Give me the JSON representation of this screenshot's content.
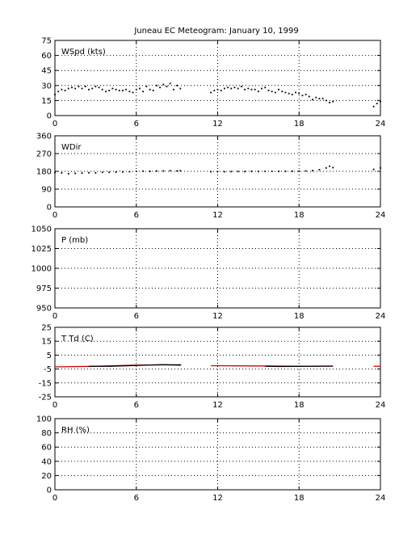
{
  "figure": {
    "title": "Juneau EC Meteogram:   January 10, 1999"
  },
  "chart_data": [
    {
      "type": "scatter",
      "title": "WSpd (kts)",
      "xlim": [
        0,
        24
      ],
      "ylim": [
        0,
        75
      ],
      "xticks": [
        0,
        6,
        12,
        18,
        24
      ],
      "yticks": [
        0,
        15,
        30,
        45,
        60,
        75
      ],
      "grid": true,
      "series": [
        {
          "color": "#000000",
          "points": [
            [
              0.0,
              21
            ],
            [
              0.25,
              24
            ],
            [
              0.5,
              26
            ],
            [
              0.75,
              25
            ],
            [
              1.0,
              27
            ],
            [
              1.25,
              28
            ],
            [
              1.5,
              27
            ],
            [
              1.75,
              29
            ],
            [
              2.0,
              27
            ],
            [
              2.25,
              29
            ],
            [
              2.5,
              26
            ],
            [
              2.75,
              27
            ],
            [
              3.0,
              29
            ],
            [
              3.25,
              28
            ],
            [
              3.5,
              26
            ],
            [
              3.75,
              24
            ],
            [
              4.0,
              25
            ],
            [
              4.25,
              27
            ],
            [
              4.5,
              26
            ],
            [
              4.75,
              25
            ],
            [
              5.0,
              25
            ],
            [
              5.25,
              26
            ],
            [
              5.5,
              24
            ],
            [
              5.75,
              23
            ],
            [
              6.0,
              26
            ],
            [
              6.25,
              27
            ],
            [
              6.5,
              24
            ],
            [
              6.75,
              29
            ],
            [
              7.0,
              26
            ],
            [
              7.25,
              25
            ],
            [
              7.5,
              30
            ],
            [
              7.75,
              28
            ],
            [
              8.0,
              31
            ],
            [
              8.25,
              29
            ],
            [
              8.5,
              32
            ],
            [
              8.75,
              26
            ],
            [
              9.0,
              30
            ],
            [
              9.25,
              27
            ],
            [
              11.5,
              23
            ],
            [
              11.75,
              25
            ],
            [
              12.0,
              26
            ],
            [
              12.25,
              25
            ],
            [
              12.5,
              27
            ],
            [
              12.75,
              28
            ],
            [
              13.0,
              27
            ],
            [
              13.25,
              28
            ],
            [
              13.5,
              27
            ],
            [
              13.75,
              29
            ],
            [
              14.0,
              26
            ],
            [
              14.25,
              27
            ],
            [
              14.5,
              26
            ],
            [
              14.75,
              26
            ],
            [
              15.0,
              24
            ],
            [
              15.25,
              27
            ],
            [
              15.5,
              28
            ],
            [
              15.75,
              25
            ],
            [
              16.0,
              24
            ],
            [
              16.25,
              23
            ],
            [
              16.5,
              26
            ],
            [
              16.75,
              24
            ],
            [
              17.0,
              23
            ],
            [
              17.25,
              22
            ],
            [
              17.5,
              21
            ],
            [
              17.75,
              23
            ],
            [
              18.0,
              22
            ],
            [
              18.25,
              20
            ],
            [
              18.5,
              21
            ],
            [
              18.75,
              19
            ],
            [
              19.0,
              16
            ],
            [
              19.25,
              18
            ],
            [
              19.5,
              17
            ],
            [
              19.75,
              17
            ],
            [
              20.0,
              15
            ],
            [
              20.25,
              13
            ],
            [
              20.5,
              14
            ],
            [
              23.5,
              9
            ],
            [
              23.75,
              12
            ],
            [
              24.0,
              14
            ]
          ]
        }
      ]
    },
    {
      "type": "scatter",
      "title": "WDir",
      "xlim": [
        0,
        24
      ],
      "ylim": [
        0,
        360
      ],
      "xticks": [
        0,
        6,
        12,
        18,
        24
      ],
      "yticks": [
        0,
        90,
        180,
        270,
        360
      ],
      "grid": true,
      "series": [
        {
          "color": "#000000",
          "points": [
            [
              0.0,
              174
            ],
            [
              0.5,
              172
            ],
            [
              1.0,
              168
            ],
            [
              1.5,
              170
            ],
            [
              2.0,
              171
            ],
            [
              2.5,
              173
            ],
            [
              3.0,
              172
            ],
            [
              3.5,
              175
            ],
            [
              4.0,
              175
            ],
            [
              4.5,
              176
            ],
            [
              5.0,
              177
            ],
            [
              5.5,
              178
            ],
            [
              6.0,
              180
            ],
            [
              6.5,
              181
            ],
            [
              7.0,
              180
            ],
            [
              7.5,
              182
            ],
            [
              8.0,
              182
            ],
            [
              8.5,
              183
            ],
            [
              9.0,
              182
            ],
            [
              9.25,
              183
            ],
            [
              11.5,
              178
            ],
            [
              12.0,
              178
            ],
            [
              12.5,
              178
            ],
            [
              13.0,
              179
            ],
            [
              13.5,
              179
            ],
            [
              14.0,
              179
            ],
            [
              14.5,
              180
            ],
            [
              15.0,
              179
            ],
            [
              15.5,
              180
            ],
            [
              16.0,
              180
            ],
            [
              16.5,
              180
            ],
            [
              17.0,
              180
            ],
            [
              17.5,
              181
            ],
            [
              18.0,
              181
            ],
            [
              18.5,
              182
            ],
            [
              19.0,
              184
            ],
            [
              19.5,
              188
            ],
            [
              20.0,
              197
            ],
            [
              20.25,
              206
            ],
            [
              20.5,
              199
            ],
            [
              23.5,
              190
            ],
            [
              24.0,
              197
            ]
          ]
        }
      ]
    },
    {
      "type": "line",
      "title": "P (mb)",
      "xlim": [
        0,
        24
      ],
      "ylim": [
        950,
        1050
      ],
      "xticks": [
        0,
        6,
        12,
        18,
        24
      ],
      "yticks": [
        950,
        975,
        1000,
        1025,
        1050
      ],
      "grid": true,
      "series": []
    },
    {
      "type": "line",
      "title": "T Td (C)",
      "xlim": [
        0,
        24
      ],
      "ylim": [
        -25,
        25
      ],
      "xticks": [
        0,
        6,
        12,
        18,
        24
      ],
      "yticks": [
        -25,
        -15,
        -5,
        5,
        15,
        25
      ],
      "grid": true,
      "series": [
        {
          "color": "#cc0000",
          "segments": [
            [
              [
                0,
                -3.5
              ],
              [
                3,
                -3.0
              ],
              [
                6,
                -2.2
              ],
              [
                8,
                -2.0
              ],
              [
                9.3,
                -2.3
              ]
            ],
            [
              [
                11.5,
                -2.6
              ],
              [
                15,
                -2.8
              ],
              [
                18,
                -3.0
              ],
              [
                20.5,
                -2.9
              ]
            ],
            [
              [
                23.5,
                -3.0
              ],
              [
                24,
                -3.0
              ]
            ]
          ]
        },
        {
          "color": "#000000",
          "segments": [
            [
              [
                2.5,
                -3.1
              ],
              [
                4,
                -3.0
              ],
              [
                5.5,
                -2.6
              ],
              [
                7,
                -2.1
              ],
              [
                8,
                -1.9
              ],
              [
                9.3,
                -2.0
              ]
            ],
            [
              [
                15.5,
                -3.0
              ],
              [
                16.5,
                -3.2
              ],
              [
                18,
                -3.1
              ],
              [
                19,
                -3.0
              ],
              [
                20.5,
                -2.9
              ]
            ]
          ]
        }
      ]
    },
    {
      "type": "line",
      "title": "RH (%)",
      "xlim": [
        0,
        24
      ],
      "ylim": [
        0,
        100
      ],
      "xticks": [
        0,
        6,
        12,
        18,
        24
      ],
      "yticks": [
        0,
        20,
        40,
        60,
        80,
        100
      ],
      "grid": true,
      "series": []
    }
  ]
}
